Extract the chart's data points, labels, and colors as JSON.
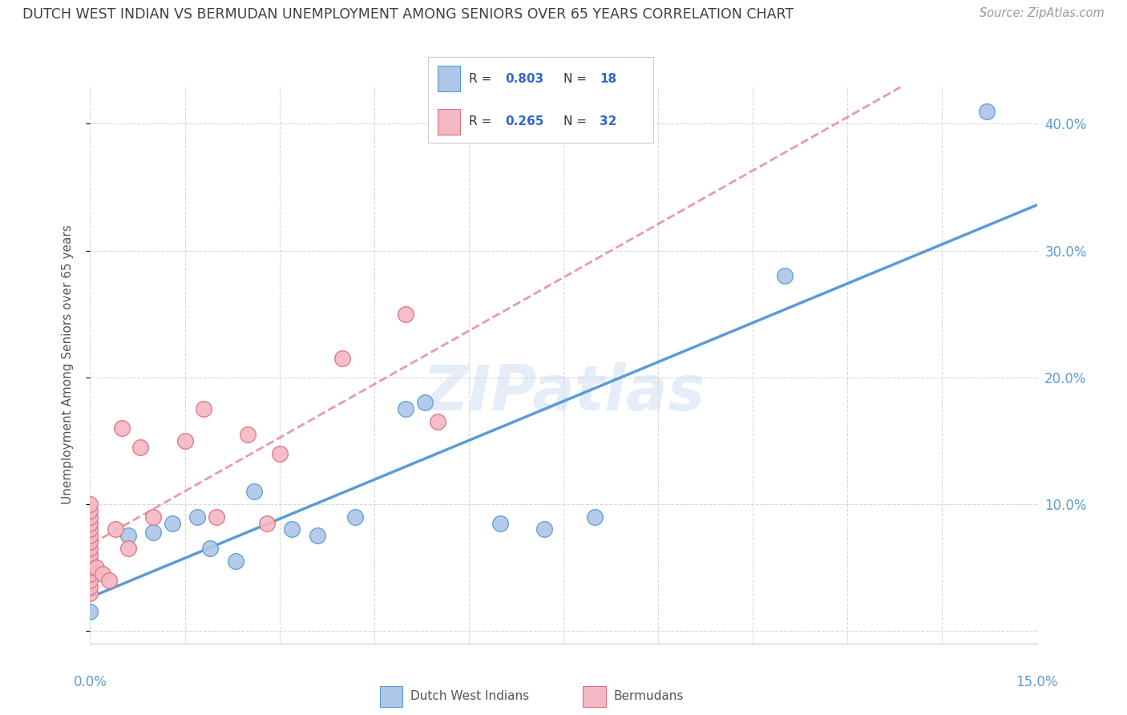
{
  "title": "DUTCH WEST INDIAN VS BERMUDAN UNEMPLOYMENT AMONG SENIORS OVER 65 YEARS CORRELATION CHART",
  "source": "Source: ZipAtlas.com",
  "ylabel": "Unemployment Among Seniors over 65 years",
  "xlim": [
    0.0,
    15.0
  ],
  "ylim": [
    -1.0,
    43.0
  ],
  "yticks_right": [
    10.0,
    20.0,
    30.0,
    40.0
  ],
  "watermark": "ZIPatlas",
  "blue_color": "#aec6e8",
  "pink_color": "#f4b8c4",
  "blue_line_color": "#5b9bd5",
  "pink_line_color": "#e07080",
  "pink_solid_color": "#e07080",
  "title_color": "#404040",
  "source_color": "#999999",
  "legend_text_color": "#3366cc",
  "grid_color": "#d8d8d8",
  "dutch_west_indians_x": [
    0.0,
    0.6,
    1.0,
    1.3,
    1.7,
    1.9,
    2.3,
    2.6,
    3.2,
    3.6,
    4.2,
    5.0,
    5.3,
    6.5,
    7.2,
    8.0,
    11.0,
    14.2
  ],
  "dutch_west_indians_y": [
    1.5,
    7.5,
    7.8,
    8.5,
    9.0,
    6.5,
    5.5,
    11.0,
    8.0,
    7.5,
    9.0,
    17.5,
    18.0,
    8.5,
    8.0,
    9.0,
    28.0,
    41.0
  ],
  "bermudans_x": [
    0.0,
    0.0,
    0.0,
    0.0,
    0.0,
    0.0,
    0.0,
    0.0,
    0.0,
    0.0,
    0.0,
    0.0,
    0.0,
    0.0,
    0.0,
    0.1,
    0.2,
    0.3,
    0.5,
    0.8,
    1.0,
    1.5,
    1.8,
    2.0,
    2.5,
    2.8,
    3.0,
    4.0,
    5.0,
    5.5,
    0.4,
    0.6
  ],
  "bermudans_y": [
    3.0,
    3.5,
    4.0,
    4.5,
    5.0,
    5.5,
    6.0,
    6.5,
    7.0,
    7.5,
    8.0,
    8.5,
    9.0,
    9.5,
    10.0,
    5.0,
    4.5,
    4.0,
    16.0,
    14.5,
    9.0,
    15.0,
    17.5,
    9.0,
    15.5,
    8.5,
    14.0,
    21.5,
    25.0,
    16.5,
    8.0,
    6.5
  ]
}
